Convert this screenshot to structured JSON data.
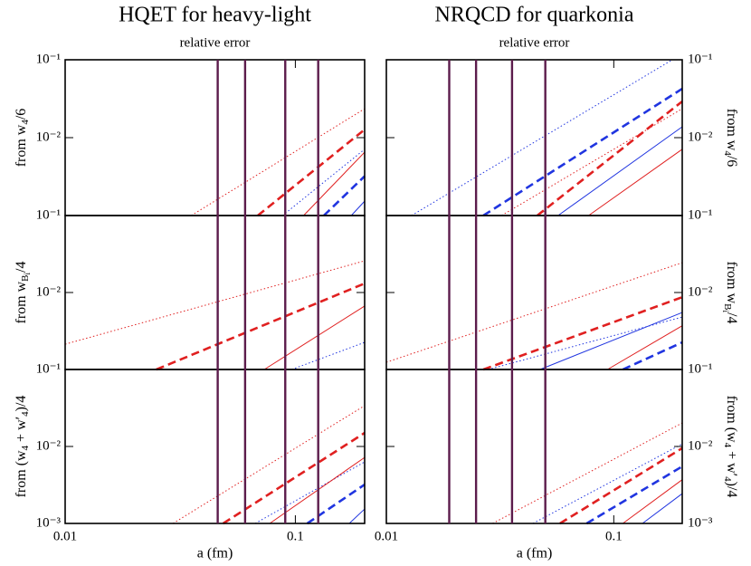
{
  "chart_data": [
    {
      "type": "line",
      "title": "HQET for heavy-light",
      "subtitle": "relative error",
      "x_label": "a (fm)",
      "log_x": true,
      "log_y": true,
      "y_axis_side": "left",
      "xlim": [
        0.01,
        0.2
      ],
      "xticks": [
        0.01,
        0.1
      ],
      "ylim": [
        0.001,
        0.1
      ],
      "vlines": {
        "color": "#5c1c4c",
        "x": [
          0.046,
          0.0605,
          0.0904,
          0.1257
        ]
      },
      "panels": [
        {
          "y_label": [
            {
              "text": "from w"
            },
            {
              "sub": "4"
            },
            {
              "text": "/6"
            }
          ],
          "yticks": [
            {
              "value": 0.01,
              "label": "10⁻²"
            },
            {
              "value": 0.1,
              "label": "10⁻¹"
            }
          ],
          "series": [
            {
              "color": "#e02020",
              "style": "dotted",
              "x": [
                0.0353,
                0.2
              ],
              "values": [
                0.001,
                0.0235
              ]
            },
            {
              "color": "#e02020",
              "style": "dashed",
              "x": [
                0.0687,
                0.2
              ],
              "values": [
                0.001,
                0.0127
              ]
            },
            {
              "color": "#e02020",
              "style": "solid",
              "x": [
                0.1086,
                0.2
              ],
              "values": [
                0.001,
                0.0065
              ]
            },
            {
              "color": "#2035e0",
              "style": "dotted",
              "x": [
                0.088,
                0.2
              ],
              "values": [
                0.001,
                0.0071
              ]
            },
            {
              "color": "#2035e0",
              "style": "dashed",
              "x": [
                0.133,
                0.2
              ],
              "values": [
                0.001,
                0.0032
              ]
            },
            {
              "color": "#2035e0",
              "style": "solid",
              "x": [
                0.175,
                0.2
              ],
              "values": [
                0.001,
                0.00153
              ]
            }
          ]
        },
        {
          "y_label": [
            {
              "text": "from w"
            },
            {
              "sub": "B"
            },
            {
              "sub2": "i"
            },
            {
              "text": "/4"
            }
          ],
          "yticks": [
            {
              "value": 0.01,
              "label": "10⁻²"
            },
            {
              "value": 0.1,
              "label": "10⁻¹"
            }
          ],
          "series": [
            {
              "color": "#e02020",
              "style": "dotted",
              "x": [
                0.01,
                0.2
              ],
              "values": [
                0.00213,
                0.0258
              ]
            },
            {
              "color": "#e02020",
              "style": "dashed",
              "x": [
                0.0249,
                0.2
              ],
              "values": [
                0.001,
                0.0131
              ]
            },
            {
              "color": "#e02020",
              "style": "solid",
              "x": [
                0.0733,
                0.2
              ],
              "values": [
                0.001,
                0.00667
              ]
            },
            {
              "color": "#2035e0",
              "style": "dotted",
              "x": [
                0.0964,
                0.2
              ],
              "values": [
                0.001,
                0.00225
              ]
            }
          ]
        },
        {
          "y_label": [
            {
              "text": "from (w"
            },
            {
              "sub": "4"
            },
            {
              "text": " + w′"
            },
            {
              "sub": "4"
            },
            {
              "text": ")/4"
            }
          ],
          "yticks": [
            {
              "value": 0.001,
              "label": "10⁻³"
            },
            {
              "value": 0.01,
              "label": "10⁻²"
            },
            {
              "value": 0.1,
              "label": "10⁻¹"
            }
          ],
          "series": [
            {
              "color": "#e02020",
              "style": "dotted",
              "x": [
                0.0294,
                0.2
              ],
              "values": [
                0.001,
                0.0339
              ]
            },
            {
              "color": "#e02020",
              "style": "dashed",
              "x": [
                0.0486,
                0.2
              ],
              "values": [
                0.001,
                0.015
              ]
            },
            {
              "color": "#2035e0",
              "style": "dotted",
              "x": [
                0.0669,
                0.2
              ],
              "values": [
                0.001,
                0.0063
              ]
            },
            {
              "color": "#e02020",
              "style": "solid",
              "x": [
                0.0774,
                0.2
              ],
              "values": [
                0.001,
                0.0072
              ]
            },
            {
              "color": "#2035e0",
              "style": "dashed",
              "x": [
                0.1127,
                0.2
              ],
              "values": [
                0.001,
                0.0032
              ]
            },
            {
              "color": "#2035e0",
              "style": "solid",
              "x": [
                0.1715,
                0.2
              ],
              "values": [
                0.001,
                0.00154
              ]
            }
          ]
        }
      ]
    },
    {
      "type": "line",
      "title": "NRQCD for quarkonia",
      "subtitle": "relative error",
      "x_label": "a (fm)",
      "log_x": true,
      "log_y": true,
      "y_axis_side": "right",
      "xlim": [
        0.01,
        0.2
      ],
      "xticks": [
        0.01,
        0.1
      ],
      "ylim": [
        0.001,
        0.1
      ],
      "vlines": {
        "color": "#5c1c4c",
        "x": [
          0.0189,
          0.0248,
          0.0357,
          0.05
        ]
      },
      "panels": [
        {
          "y_label": [
            {
              "text": "from w"
            },
            {
              "sub": "4"
            },
            {
              "text": "/6"
            }
          ],
          "yticks": [
            {
              "value": 0.01,
              "label": "10⁻²"
            },
            {
              "value": 0.1,
              "label": "10⁻¹"
            }
          ],
          "series": [
            {
              "color": "#2035e0",
              "style": "dotted",
              "x": [
                0.0129,
                0.181
              ],
              "values": [
                0.001,
                0.1
              ]
            },
            {
              "color": "#e02020",
              "style": "dotted",
              "x": [
                0.0321,
                0.2
              ],
              "values": [
                0.001,
                0.0235
              ]
            },
            {
              "color": "#2035e0",
              "style": "dashed",
              "x": [
                0.0267,
                0.2
              ],
              "values": [
                0.001,
                0.0425
              ]
            },
            {
              "color": "#e02020",
              "style": "dashed",
              "x": [
                0.0461,
                0.2
              ],
              "values": [
                0.001,
                0.0292
              ]
            },
            {
              "color": "#2035e0",
              "style": "solid",
              "x": [
                0.0569,
                0.2
              ],
              "values": [
                0.001,
                0.0138
              ]
            },
            {
              "color": "#e02020",
              "style": "solid",
              "x": [
                0.0775,
                0.2
              ],
              "values": [
                0.001,
                0.0071
              ]
            }
          ]
        },
        {
          "y_label": [
            {
              "text": "from w"
            },
            {
              "sub": "B"
            },
            {
              "sub2": "i"
            },
            {
              "text": "/4"
            }
          ],
          "yticks": [
            {
              "value": 0.01,
              "label": "10⁻²"
            },
            {
              "value": 0.1,
              "label": "10⁻¹"
            }
          ],
          "series": [
            {
              "color": "#e02020",
              "style": "dotted",
              "x": [
                0.01,
                0.2
              ],
              "values": [
                0.00124,
                0.0244
              ]
            },
            {
              "color": "#e02020",
              "style": "dashed",
              "x": [
                0.0267,
                0.2
              ],
              "values": [
                0.001,
                0.0087
              ]
            },
            {
              "color": "#2035e0",
              "style": "dotted",
              "x": [
                0.028,
                0.2
              ],
              "values": [
                0.001,
                0.0048
              ]
            },
            {
              "color": "#2035e0",
              "style": "solid",
              "x": [
                0.0474,
                0.2
              ],
              "values": [
                0.001,
                0.0055
              ]
            },
            {
              "color": "#e02020",
              "style": "solid",
              "x": [
                0.0938,
                0.2
              ],
              "values": [
                0.001,
                0.0037
              ]
            },
            {
              "color": "#2035e0",
              "style": "dashed",
              "x": [
                0.1096,
                0.2
              ],
              "values": [
                0.001,
                0.00225
              ]
            }
          ]
        },
        {
          "y_label": [
            {
              "text": "from (w"
            },
            {
              "sub": "4"
            },
            {
              "text": " + w′"
            },
            {
              "sub": "4"
            },
            {
              "text": ")/4"
            }
          ],
          "yticks": [
            {
              "value": 0.001,
              "label": "10⁻³"
            },
            {
              "value": 0.01,
              "label": "10⁻²"
            },
            {
              "value": 0.1,
              "label": "10⁻¹"
            }
          ],
          "series": [
            {
              "color": "#e02020",
              "style": "dotted",
              "x": [
                0.0293,
                0.2
              ],
              "values": [
                0.001,
                0.0202
              ]
            },
            {
              "color": "#2035e0",
              "style": "dotted",
              "x": [
                0.0441,
                0.2
              ],
              "values": [
                0.001,
                0.0108
              ]
            },
            {
              "color": "#e02020",
              "style": "dashed",
              "x": [
                0.058,
                0.2
              ],
              "values": [
                0.001,
                0.0095
              ]
            },
            {
              "color": "#2035e0",
              "style": "dashed",
              "x": [
                0.076,
                0.2
              ],
              "values": [
                0.001,
                0.0055
              ]
            },
            {
              "color": "#e02020",
              "style": "solid",
              "x": [
                0.1096,
                0.2
              ],
              "values": [
                0.001,
                0.0037
              ]
            },
            {
              "color": "#2035e0",
              "style": "solid",
              "x": [
                0.1337,
                0.2
              ],
              "values": [
                0.001,
                0.00244
              ]
            }
          ]
        }
      ]
    }
  ]
}
